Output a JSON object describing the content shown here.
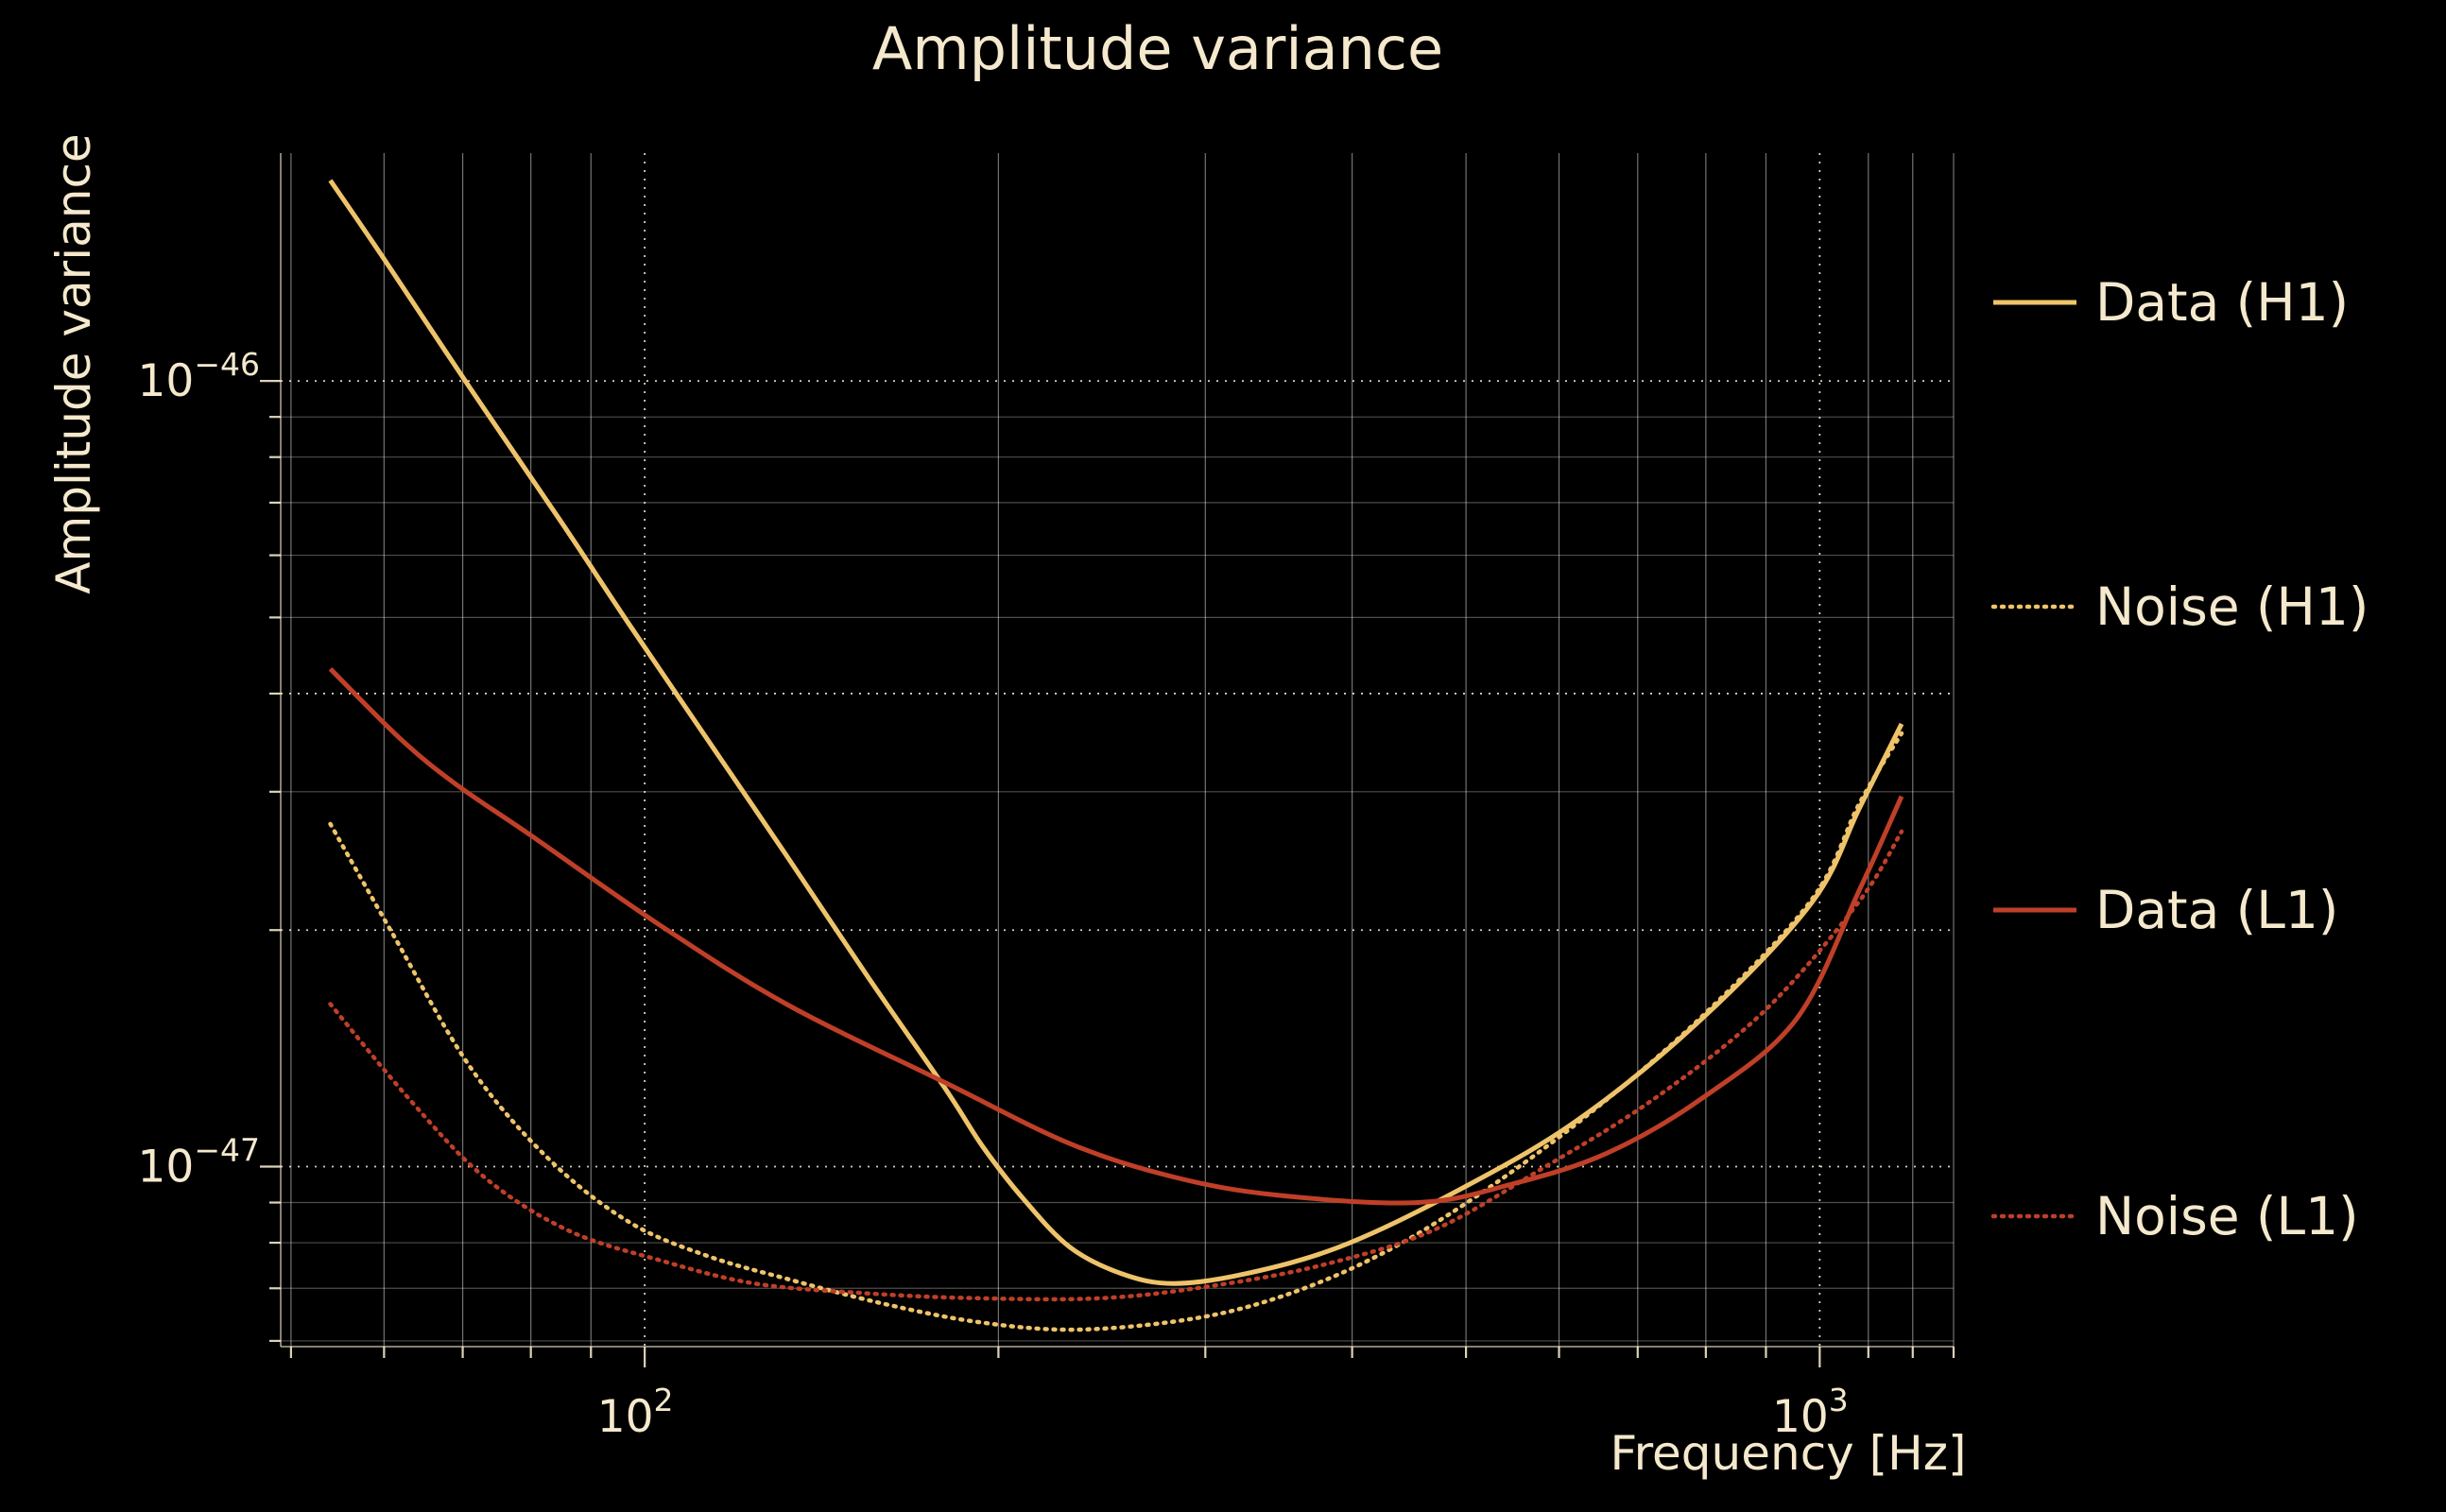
{
  "figure": {
    "background_color": "#000000",
    "text_color": "#f5e9cd",
    "grid_color": "#ffffff"
  },
  "chart_data": {
    "type": "line",
    "title": "Amplitude variance",
    "xlabel": "Frequency [Hz]",
    "ylabel": "Amplitude variance",
    "xscale": "log",
    "yscale": "log",
    "xlim": [
      49,
      1300
    ],
    "ylim": [
      5.9e-48,
      1.95e-46
    ],
    "grid_on": true,
    "legend_position": "right",
    "grid": {
      "x_minor": [
        50,
        60,
        70,
        80,
        90,
        200,
        300,
        400,
        500,
        600,
        700,
        800,
        900,
        1100,
        1200,
        1300
      ],
      "x_major": [
        100,
        1000
      ],
      "y_minor": [
        6e-48,
        7e-48,
        8e-48,
        9e-48,
        3e-47,
        5e-47,
        6e-47,
        7e-47,
        8e-47,
        9e-47
      ],
      "y_major": [
        1e-47,
        2e-47,
        4e-47,
        1e-46
      ]
    },
    "x_tick_labels": [
      {
        "value": 100,
        "base": "10",
        "exp": "2"
      },
      {
        "value": 1000,
        "base": "10",
        "exp": "3"
      }
    ],
    "y_tick_labels": [
      {
        "value": 1e-46,
        "base": "10",
        "exp": "−46"
      },
      {
        "value": 1e-47,
        "base": "10",
        "exp": "−47"
      }
    ],
    "series": [
      {
        "name": "Data (H1)",
        "color": "#eec36a",
        "style": "solid",
        "points": [
          [
            54,
            1.8e-46
          ],
          [
            60,
            1.43e-46
          ],
          [
            71,
            9.8e-47
          ],
          [
            85,
            6.6e-47
          ],
          [
            97,
            4.9e-47
          ],
          [
            115,
            3.37e-47
          ],
          [
            132,
            2.49e-47
          ],
          [
            155,
            1.74e-47
          ],
          [
            180,
            1.26e-47
          ],
          [
            194,
            1.06e-47
          ],
          [
            210,
            9.1e-48
          ],
          [
            230,
            7.9e-48
          ],
          [
            255,
            7.3e-48
          ],
          [
            282,
            7.1e-48
          ],
          [
            324,
            7.3e-48
          ],
          [
            390,
            7.9e-48
          ],
          [
            484,
            9.2e-48
          ],
          [
            619,
            1.14e-47
          ],
          [
            793,
            1.54e-47
          ],
          [
            985,
            2.17e-47
          ],
          [
            1081,
            2.86e-47
          ],
          [
            1174,
            3.66e-47
          ]
        ]
      },
      {
        "name": "Noise (H1)",
        "color": "#eec36a",
        "style": "dotted",
        "points": [
          [
            54,
            2.73e-47
          ],
          [
            61,
            1.98e-47
          ],
          [
            71,
            1.34e-47
          ],
          [
            83,
            1.02e-47
          ],
          [
            97,
            8.5e-48
          ],
          [
            113,
            7.7e-48
          ],
          [
            132,
            7.2e-48
          ],
          [
            159,
            6.7e-48
          ],
          [
            191,
            6.35e-48
          ],
          [
            230,
            6.2e-48
          ],
          [
            282,
            6.35e-48
          ],
          [
            334,
            6.7e-48
          ],
          [
            402,
            7.45e-48
          ],
          [
            484,
            8.7e-48
          ],
          [
            619,
            1.13e-47
          ],
          [
            793,
            1.55e-47
          ],
          [
            985,
            2.19e-47
          ],
          [
            1081,
            2.9e-47
          ],
          [
            1174,
            3.56e-47
          ]
        ]
      },
      {
        "name": "Data (L1)",
        "color": "#bf3f28",
        "style": "solid",
        "points": [
          [
            54,
            4.3e-47
          ],
          [
            62,
            3.5e-47
          ],
          [
            69,
            3.07e-47
          ],
          [
            80,
            2.64e-47
          ],
          [
            103,
            2.03e-47
          ],
          [
            132,
            1.61e-47
          ],
          [
            180,
            1.28e-47
          ],
          [
            230,
            1.07e-47
          ],
          [
            282,
            9.7e-48
          ],
          [
            345,
            9.2e-48
          ],
          [
            455,
            9e-48
          ],
          [
            547,
            9.5e-48
          ],
          [
            659,
            1.04e-47
          ],
          [
            793,
            1.22e-47
          ],
          [
            955,
            1.54e-47
          ],
          [
            1081,
            2.25e-47
          ],
          [
            1174,
            2.96e-47
          ]
        ]
      },
      {
        "name": "Noise (L1)",
        "color": "#bf3f28",
        "style": "dotted",
        "points": [
          [
            54,
            1.61e-47
          ],
          [
            63,
            1.22e-47
          ],
          [
            73,
            9.7e-48
          ],
          [
            86,
            8.3e-48
          ],
          [
            103,
            7.6e-48
          ],
          [
            124,
            7.1e-48
          ],
          [
            154,
            6.9e-48
          ],
          [
            191,
            6.8e-48
          ],
          [
            245,
            6.8e-48
          ],
          [
            304,
            7.05e-48
          ],
          [
            378,
            7.5e-48
          ],
          [
            469,
            8.3e-48
          ],
          [
            581,
            9.95e-48
          ],
          [
            723,
            1.22e-47
          ],
          [
            898,
            1.58e-47
          ],
          [
            1079,
            2.17e-47
          ],
          [
            1174,
            2.67e-47
          ]
        ]
      }
    ]
  }
}
